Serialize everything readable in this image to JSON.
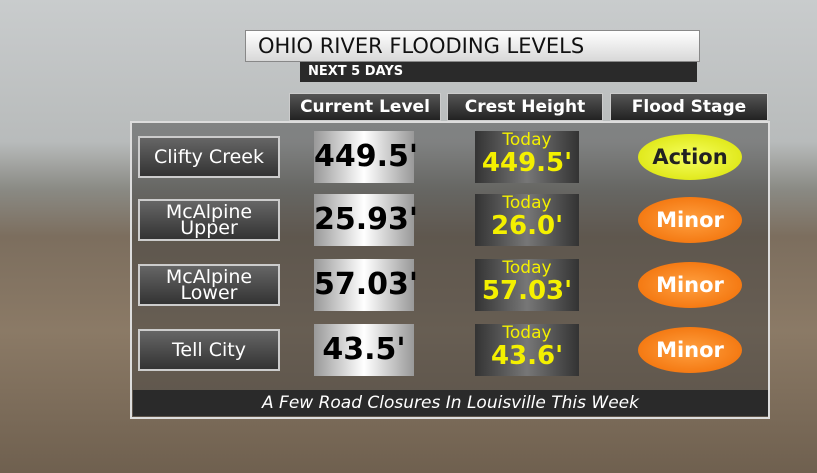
{
  "header": {
    "title": "OHIO RIVER FLOODING LEVELS",
    "subtitle": "NEXT 5 DAYS"
  },
  "table": {
    "columns": [
      "Current Level",
      "Crest Height",
      "Flood Stage"
    ],
    "rows": [
      {
        "location": [
          "Clifty Creek"
        ],
        "current": "449.5'",
        "crest_day": "Today",
        "crest": "449.5'",
        "stage": "Action"
      },
      {
        "location": [
          "McAlpine",
          "Upper"
        ],
        "current": "25.93'",
        "crest_day": "Today",
        "crest": "26.0'",
        "stage": "Minor"
      },
      {
        "location": [
          "McAlpine",
          "Lower"
        ],
        "current": "57.03'",
        "crest_day": "Today",
        "crest": "57.03'",
        "stage": "Minor"
      },
      {
        "location": [
          "Tell City"
        ],
        "current": "43.5'",
        "crest_day": "Today",
        "crest": "43.6'",
        "stage": "Minor"
      }
    ]
  },
  "footer": "A Few Road Closures In Louisville This Week"
}
